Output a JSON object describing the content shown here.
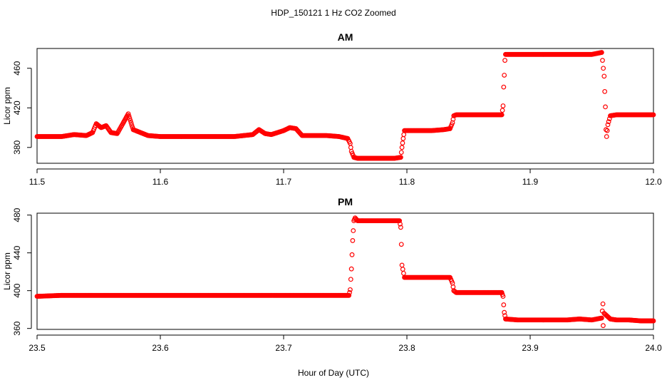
{
  "figure": {
    "title": "HDP_150121  1 Hz CO2 Zoomed",
    "xlabel": "Hour of Day (UTC)"
  },
  "chart_data": [
    {
      "type": "scatter",
      "title": "AM",
      "xlabel": "",
      "ylabel": "Licor ppm",
      "xlim": [
        11.5,
        12.0
      ],
      "ylim": [
        364,
        480
      ],
      "xticks": [
        "11.5",
        "11.6",
        "11.7",
        "11.8",
        "11.9",
        "12.0"
      ],
      "yticks": [
        "380",
        "420",
        "460"
      ],
      "marker_color": "#ff0000",
      "marker": "open-circle",
      "grid": false,
      "series": [
        {
          "values": [
            [
              11.5,
              391
            ],
            [
              11.51,
              391
            ],
            [
              11.52,
              391
            ],
            [
              11.53,
              393
            ],
            [
              11.54,
              392
            ],
            [
              11.545,
              395
            ],
            [
              11.548,
              404
            ],
            [
              11.552,
              400
            ],
            [
              11.556,
              402
            ],
            [
              11.56,
              395
            ],
            [
              11.565,
              394
            ],
            [
              11.57,
              405
            ],
            [
              11.574,
              414
            ],
            [
              11.578,
              398
            ],
            [
              11.582,
              396
            ],
            [
              11.59,
              392
            ],
            [
              11.6,
              391
            ],
            [
              11.62,
              391
            ],
            [
              11.64,
              391
            ],
            [
              11.66,
              391
            ],
            [
              11.675,
              393
            ],
            [
              11.68,
              398
            ],
            [
              11.685,
              394
            ],
            [
              11.69,
              393
            ],
            [
              11.695,
              395
            ],
            [
              11.7,
              397
            ],
            [
              11.705,
              400
            ],
            [
              11.71,
              399
            ],
            [
              11.715,
              392
            ],
            [
              11.725,
              392
            ],
            [
              11.735,
              392
            ],
            [
              11.745,
              391
            ],
            [
              11.752,
              389
            ],
            [
              11.754,
              384
            ],
            [
              11.755,
              376
            ],
            [
              11.757,
              370
            ],
            [
              11.76,
              369
            ],
            [
              11.77,
              369
            ],
            [
              11.78,
              369
            ],
            [
              11.79,
              369
            ],
            [
              11.795,
              370
            ],
            [
              11.796,
              380
            ],
            [
              11.797,
              389
            ],
            [
              11.798,
              397
            ],
            [
              11.8,
              397
            ],
            [
              11.81,
              397
            ],
            [
              11.82,
              397
            ],
            [
              11.83,
              398
            ],
            [
              11.835,
              399
            ],
            [
              11.837,
              405
            ],
            [
              11.838,
              412
            ],
            [
              11.84,
              413
            ],
            [
              11.85,
              413
            ],
            [
              11.86,
              413
            ],
            [
              11.87,
              413
            ],
            [
              11.877,
              413
            ],
            [
              11.878,
              422
            ],
            [
              11.8785,
              441
            ],
            [
              11.879,
              453
            ],
            [
              11.8795,
              468
            ],
            [
              11.88,
              474
            ],
            [
              11.89,
              474
            ],
            [
              11.9,
              474
            ],
            [
              11.91,
              474
            ],
            [
              11.92,
              474
            ],
            [
              11.93,
              474
            ],
            [
              11.94,
              474
            ],
            [
              11.95,
              474
            ],
            [
              11.958,
              476
            ],
            [
              11.96,
              452
            ],
            [
              11.961,
              421
            ],
            [
              11.9615,
              398
            ],
            [
              11.962,
              391
            ],
            [
              11.963,
              403
            ],
            [
              11.965,
              412
            ],
            [
              11.97,
              413
            ],
            [
              11.98,
              413
            ],
            [
              11.99,
              413
            ],
            [
              12.0,
              413
            ]
          ]
        }
      ]
    },
    {
      "type": "scatter",
      "title": "PM",
      "xlabel": "",
      "ylabel": "Licor ppm",
      "xlim": [
        23.5,
        24.0
      ],
      "ylim": [
        359,
        482
      ],
      "xticks": [
        "23.5",
        "23.6",
        "23.7",
        "23.8",
        "23.9",
        "24.0"
      ],
      "yticks": [
        "360",
        "400",
        "440",
        "480"
      ],
      "marker_color": "#ff0000",
      "marker": "open-circle",
      "grid": false,
      "series": [
        {
          "values": [
            [
              23.5,
              394
            ],
            [
              23.52,
              395
            ],
            [
              23.54,
              395
            ],
            [
              23.56,
              395
            ],
            [
              23.58,
              395
            ],
            [
              23.6,
              395
            ],
            [
              23.62,
              395
            ],
            [
              23.64,
              395
            ],
            [
              23.66,
              395
            ],
            [
              23.68,
              395
            ],
            [
              23.7,
              395
            ],
            [
              23.72,
              395
            ],
            [
              23.74,
              395
            ],
            [
              23.753,
              395
            ],
            [
              23.754,
              401
            ],
            [
              23.755,
              423
            ],
            [
              23.756,
              453
            ],
            [
              23.757,
              474
            ],
            [
              23.758,
              477
            ],
            [
              23.76,
              474
            ],
            [
              23.77,
              474
            ],
            [
              23.78,
              474
            ],
            [
              23.79,
              474
            ],
            [
              23.794,
              474
            ],
            [
              23.795,
              467
            ],
            [
              23.7955,
              449
            ],
            [
              23.796,
              427
            ],
            [
              23.798,
              414
            ],
            [
              23.81,
              414
            ],
            [
              23.82,
              414
            ],
            [
              23.83,
              414
            ],
            [
              23.835,
              414
            ],
            [
              23.837,
              408
            ],
            [
              23.838,
              400
            ],
            [
              23.84,
              398
            ],
            [
              23.85,
              398
            ],
            [
              23.86,
              398
            ],
            [
              23.87,
              398
            ],
            [
              23.877,
              398
            ],
            [
              23.878,
              394
            ],
            [
              23.8785,
              385
            ],
            [
              23.879,
              377
            ],
            [
              23.88,
              370
            ],
            [
              23.89,
              369
            ],
            [
              23.9,
              369
            ],
            [
              23.91,
              369
            ],
            [
              23.92,
              369
            ],
            [
              23.93,
              369
            ],
            [
              23.94,
              370
            ],
            [
              23.95,
              369
            ],
            [
              23.958,
              371
            ],
            [
              23.959,
              386
            ],
            [
              23.9592,
              363
            ],
            [
              23.96,
              376
            ],
            [
              23.965,
              370
            ],
            [
              23.97,
              369
            ],
            [
              23.98,
              369
            ],
            [
              23.99,
              368
            ],
            [
              24.0,
              368
            ]
          ]
        }
      ]
    }
  ]
}
